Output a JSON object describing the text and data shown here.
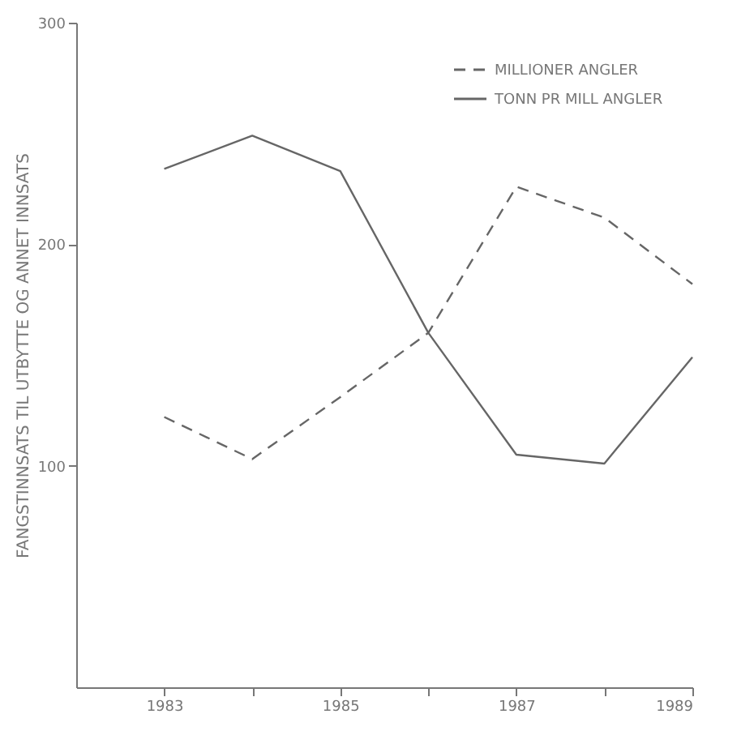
{
  "chart_data": {
    "type": "line",
    "ylabel": "FANGSTINNSATS TIL UTBYTTE OG ANNET INNSATS",
    "x": [
      1983,
      1984,
      1985,
      1986,
      1987,
      1988,
      1989
    ],
    "series": [
      {
        "name": "MILLIONER ANGLER",
        "color": "#666666",
        "line_style": "dashed",
        "values": [
          122,
          103,
          131,
          160,
          226,
          212,
          182
        ]
      },
      {
        "name": "TONN PR MILL ANGLER",
        "color": "#666666",
        "line_style": "solid",
        "values": [
          234,
          249,
          233,
          160,
          105,
          101,
          149
        ]
      }
    ],
    "xlim": [
      1982,
      1989
    ],
    "xticks": [
      {
        "value": 1983,
        "label": "1983"
      },
      {
        "value": 1984,
        "label": null
      },
      {
        "value": 1985,
        "label": "1985"
      },
      {
        "value": 1986,
        "label": null
      },
      {
        "value": 1987,
        "label": "1987"
      },
      {
        "value": 1988,
        "label": null
      },
      {
        "value": 1989,
        "label": "1989"
      }
    ],
    "ylim": [
      0,
      300
    ],
    "yticks": [
      {
        "value": 100,
        "label": "100"
      },
      {
        "value": 200,
        "label": "200"
      },
      {
        "value": 300,
        "label": "300"
      }
    ],
    "legend": "top right",
    "grid": false
  }
}
